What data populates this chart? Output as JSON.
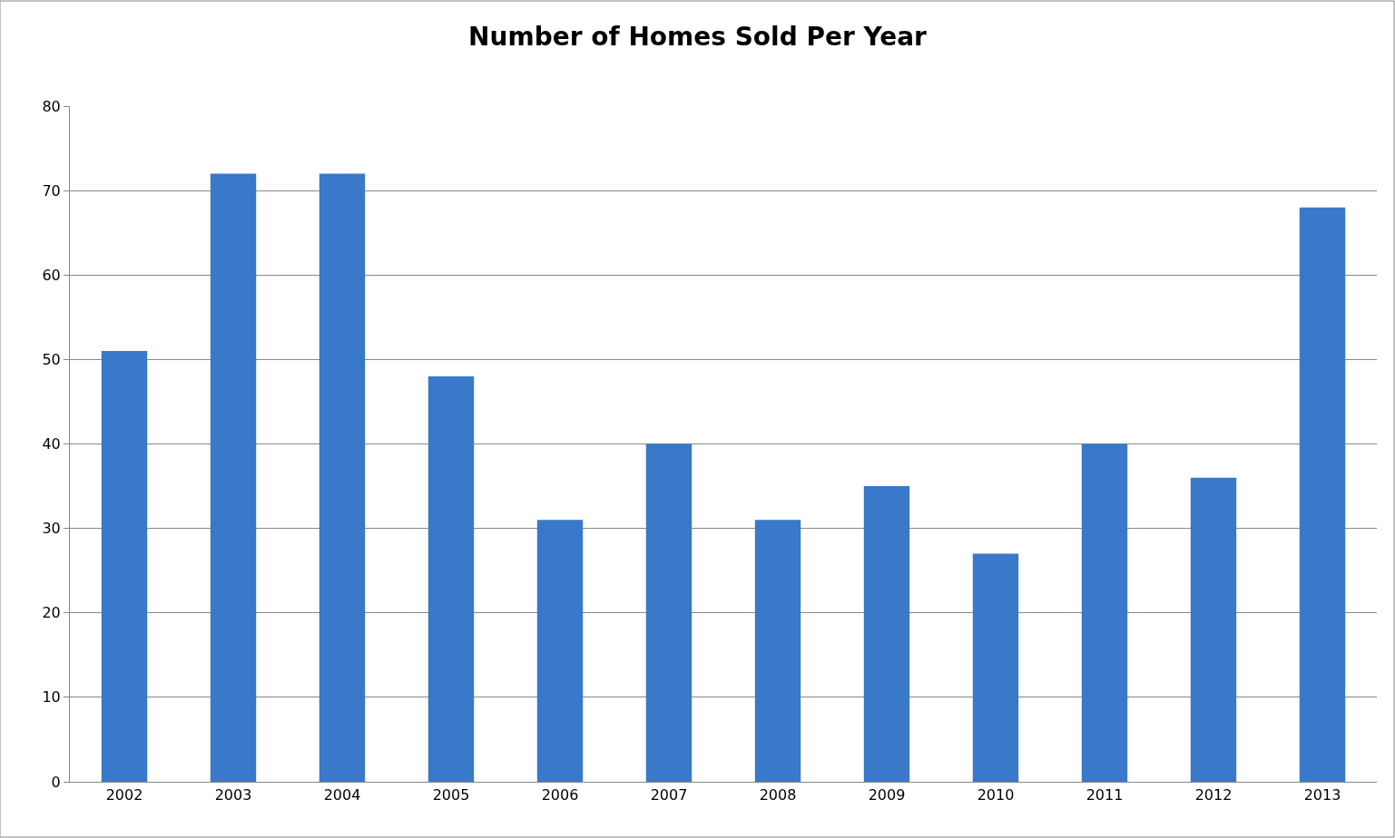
{
  "chart_data": {
    "type": "bar",
    "title": "Number of Homes Sold Per Year",
    "categories": [
      "2002",
      "2003",
      "2004",
      "2005",
      "2006",
      "2007",
      "2008",
      "2009",
      "2010",
      "2011",
      "2012",
      "2013"
    ],
    "values": [
      51,
      72,
      72,
      48,
      31,
      40,
      31,
      35,
      27,
      40,
      36,
      68
    ],
    "color": "#3a78c9",
    "ylim": [
      0,
      80
    ],
    "yticks": [
      0,
      10,
      20,
      30,
      40,
      50,
      60,
      70,
      80
    ],
    "grid": "y"
  }
}
